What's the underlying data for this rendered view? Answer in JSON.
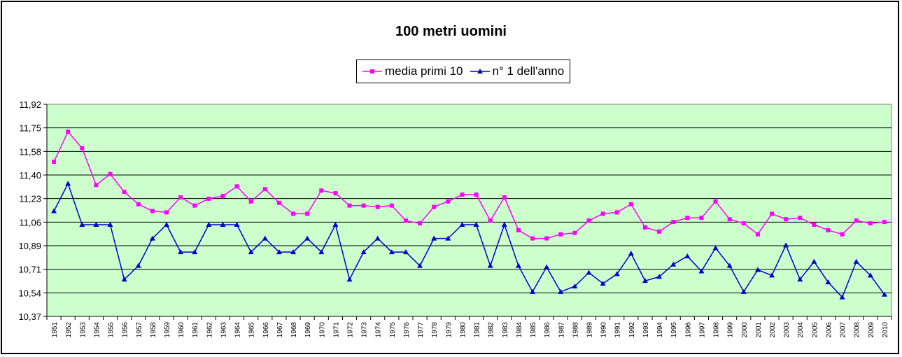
{
  "chart_data": {
    "type": "line",
    "title": "100 metri uomini",
    "x": [
      "1951",
      "1952",
      "1953",
      "1954",
      "1955",
      "1956",
      "1957",
      "1958",
      "1959",
      "1960",
      "1961",
      "1962",
      "1963",
      "1964",
      "1965",
      "1966",
      "1967",
      "1968",
      "1969",
      "1970",
      "1971",
      "1972",
      "1973",
      "1974",
      "1975",
      "1976",
      "1977",
      "1978",
      "1979",
      "1980",
      "1981",
      "1982",
      "1983",
      "1984",
      "1985",
      "1986",
      "1987",
      "1988",
      "1989",
      "1990",
      "1991",
      "1992",
      "1993",
      "1994",
      "1995",
      "1996",
      "1997",
      "1998",
      "1999",
      "2000",
      "2001",
      "2002",
      "2003",
      "2004",
      "2005",
      "2006",
      "2007",
      "2008",
      "2009",
      "2010"
    ],
    "y_ticks": [
      "11,92",
      "11,75",
      "11,58",
      "11,40",
      "11,23",
      "11,06",
      "10,89",
      "10,71",
      "10,54",
      "10,37"
    ],
    "ylim": [
      10.37,
      11.92
    ],
    "grid": true,
    "legend_position": "top-center",
    "plot_background": "#CCFFCC",
    "series": [
      {
        "name": "media primi 10",
        "color": "#FF00FF",
        "marker": "square",
        "values": [
          11.5,
          11.72,
          11.6,
          11.33,
          11.41,
          11.28,
          11.19,
          11.14,
          11.13,
          11.24,
          11.18,
          11.23,
          11.25,
          11.32,
          11.21,
          11.3,
          11.2,
          11.12,
          11.12,
          11.29,
          11.27,
          11.18,
          11.18,
          11.17,
          11.18,
          11.07,
          11.05,
          11.17,
          11.21,
          11.26,
          11.26,
          11.07,
          11.24,
          11.0,
          10.94,
          10.94,
          10.97,
          10.98,
          11.07,
          11.12,
          11.13,
          11.19,
          11.02,
          10.99,
          11.06,
          11.09,
          11.09,
          11.21,
          11.08,
          11.05,
          10.97,
          11.12,
          11.08,
          11.09,
          11.04,
          11.0,
          10.97,
          11.07,
          11.05,
          11.06
        ]
      },
      {
        "name": "n° 1 dell'anno",
        "color": "#0000CC",
        "marker": "triangle",
        "values": [
          11.14,
          11.34,
          11.04,
          11.04,
          11.04,
          10.64,
          10.74,
          10.94,
          11.04,
          10.84,
          10.84,
          11.04,
          11.04,
          11.04,
          10.84,
          10.94,
          10.84,
          10.84,
          10.94,
          10.84,
          11.04,
          10.64,
          10.84,
          10.94,
          10.84,
          10.84,
          10.74,
          10.94,
          10.94,
          11.04,
          11.04,
          10.74,
          11.04,
          10.74,
          10.55,
          10.73,
          10.55,
          10.59,
          10.69,
          10.61,
          10.68,
          10.83,
          10.63,
          10.66,
          10.75,
          10.81,
          10.7,
          10.87,
          10.74,
          10.55,
          10.71,
          10.67,
          10.89,
          10.64,
          10.77,
          10.62,
          10.51,
          10.77,
          10.67,
          10.53
        ]
      }
    ]
  }
}
